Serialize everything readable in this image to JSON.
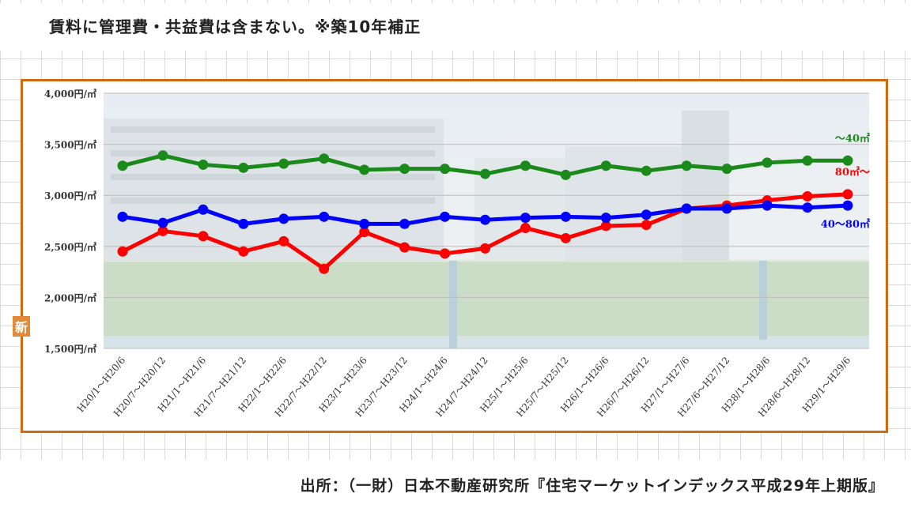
{
  "note": "賃料に管理費・共益費は含まない。※築10年補正",
  "source": "出所：（一財）日本不動産研究所『住宅マーケットインデックス平成29年上期版』",
  "logo_text": "新",
  "chart_data": {
    "type": "line",
    "categories": [
      "H20/1～H20/6",
      "H20/7～H20/12",
      "H21/1～H21/6",
      "H21/7～H21/12",
      "H22/1～H22/6",
      "H22/7～H22/12",
      "H23/1～H23/6",
      "H23/7～H23/12",
      "H24/1～H24/6",
      "H24/7～H24/12",
      "H25/1～H25/6",
      "H25/7～H25/12",
      "H26/1～H26/6",
      "H26/7～H26/12",
      "H27/1～H27/6",
      "H27/6～H27/12",
      "H28/1～H28/6",
      "H28/6～H28/12",
      "H29/1～H29/6"
    ],
    "y_tick_labels": [
      "4,000円/㎡",
      "3,500円/㎡",
      "3,000円/㎡",
      "2,500円/㎡",
      "2,000円/㎡",
      "1,500円/㎡"
    ],
    "y_ticks": [
      4000,
      3500,
      3000,
      2500,
      2000,
      1500
    ],
    "ylim": [
      1500,
      4000
    ],
    "grid": true,
    "series": [
      {
        "name": "～40㎡",
        "color": "#1a8a1a",
        "values": [
          3290,
          3390,
          3300,
          3270,
          3310,
          3360,
          3250,
          3260,
          3260,
          3210,
          3290,
          3200,
          3290,
          3240,
          3290,
          3260,
          3320,
          3340,
          3340
        ]
      },
      {
        "name": "80㎡～",
        "color": "#ff0000",
        "values": [
          2450,
          2650,
          2600,
          2450,
          2550,
          2280,
          2640,
          2490,
          2430,
          2480,
          2680,
          2580,
          2700,
          2710,
          2870,
          2900,
          2950,
          2990,
          3010
        ]
      },
      {
        "name": "40～80㎡",
        "color": "#0000ff",
        "values": [
          2790,
          2730,
          2860,
          2720,
          2770,
          2790,
          2720,
          2720,
          2790,
          2760,
          2780,
          2790,
          2780,
          2810,
          2870,
          2870,
          2900,
          2880,
          2900
        ]
      }
    ]
  }
}
